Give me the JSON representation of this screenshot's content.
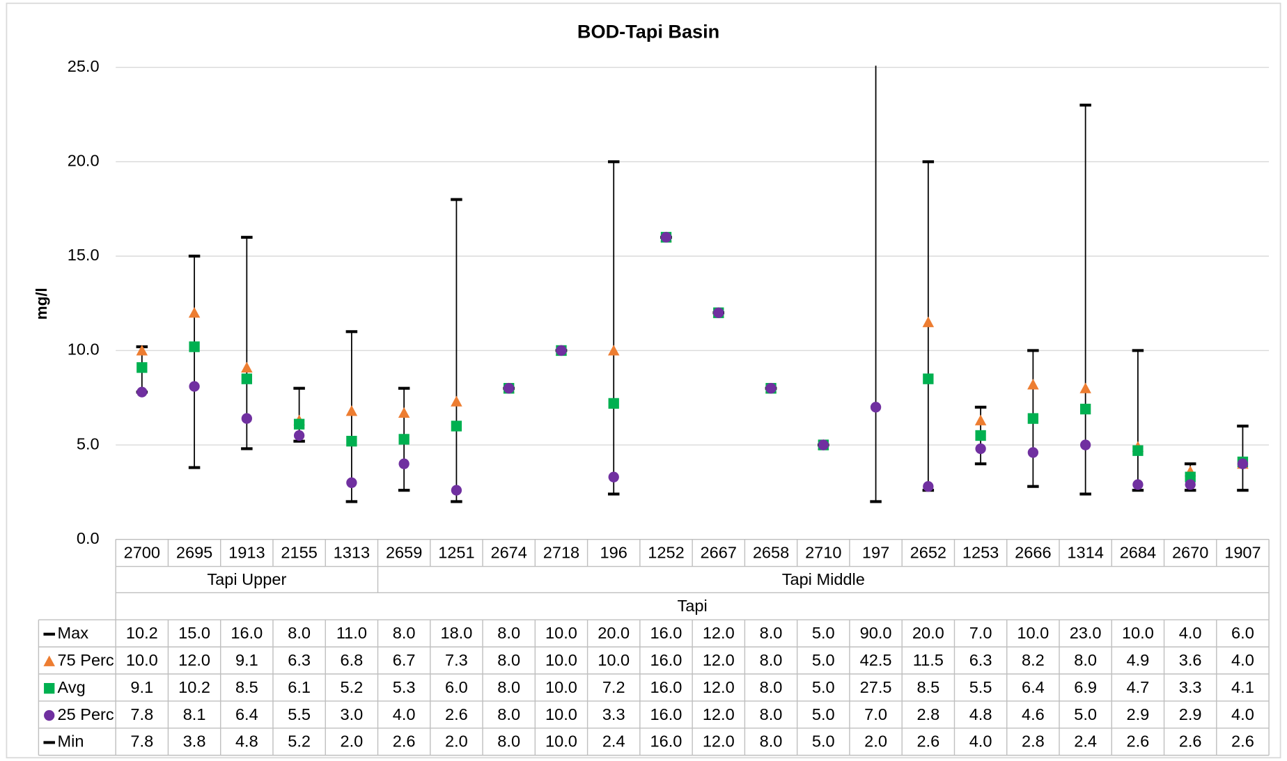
{
  "chart_data": {
    "type": "line",
    "title": "BOD-Tapi Basin",
    "y_label": "mg/l",
    "categories": [
      "2700",
      "2695",
      "1913",
      "2155",
      "1313",
      "2659",
      "1251",
      "2674",
      "2718",
      "196",
      "1252",
      "2667",
      "2658",
      "2710",
      "197",
      "2652",
      "1253",
      "2666",
      "1314",
      "2684",
      "2670",
      "1907"
    ],
    "groups": [
      "Tapi Upper",
      "Tapi Upper",
      "Tapi Upper",
      "Tapi Upper",
      "Tapi Upper",
      "Tapi Middle",
      "Tapi Middle",
      "Tapi Middle",
      "Tapi Middle",
      "Tapi Middle",
      "Tapi Middle",
      "Tapi Middle",
      "Tapi Middle",
      "Tapi Middle",
      "Tapi Middle",
      "Tapi Middle",
      "Tapi Middle",
      "Tapi Middle",
      "Tapi Middle",
      "Tapi Middle",
      "Tapi Middle",
      "Tapi Middle"
    ],
    "supergroup": "Tapi",
    "ylim": [
      0,
      25
    ],
    "yticks": [
      {
        "value": 0,
        "label": "0.0"
      },
      {
        "value": 5,
        "label": "5.0"
      },
      {
        "value": 10,
        "label": "10.0"
      },
      {
        "value": 15,
        "label": "15.0"
      },
      {
        "value": 20,
        "label": "20.0"
      },
      {
        "value": 25,
        "label": "25.0"
      }
    ],
    "grid": true,
    "hilo_lines": true,
    "data_table": true,
    "series": [
      {
        "name": "Max",
        "color": "#000000",
        "marker": "dash",
        "values": [
          10.2,
          15,
          16,
          8,
          11,
          8,
          18,
          8,
          10,
          20,
          16,
          12,
          8,
          5,
          90,
          20,
          7,
          10,
          23,
          10,
          4,
          6
        ],
        "value_labels": [
          "10.2",
          "15.0",
          "16.0",
          "8.0",
          "11.0",
          "8.0",
          "18.0",
          "8.0",
          "10.0",
          "20.0",
          "16.0",
          "12.0",
          "8.0",
          "5.0",
          "90.0",
          "20.0",
          "7.0",
          "10.0",
          "23.0",
          "10.0",
          "4.0",
          "6.0"
        ]
      },
      {
        "name": "75 Perc",
        "color": "#ed7d31",
        "marker": "triangle",
        "values": [
          10,
          12,
          9.1,
          6.3,
          6.8,
          6.7,
          7.3,
          8,
          10,
          10,
          16,
          12,
          8,
          5,
          42.5,
          11.5,
          6.3,
          8.2,
          8,
          4.9,
          3.6,
          4
        ],
        "value_labels": [
          "10.0",
          "12.0",
          "9.1",
          "6.3",
          "6.8",
          "6.7",
          "7.3",
          "8.0",
          "10.0",
          "10.0",
          "16.0",
          "12.0",
          "8.0",
          "5.0",
          "42.5",
          "11.5",
          "6.3",
          "8.2",
          "8.0",
          "4.9",
          "3.6",
          "4.0"
        ]
      },
      {
        "name": "Avg",
        "color": "#00b050",
        "marker": "square",
        "values": [
          9.1,
          10.2,
          8.5,
          6.1,
          5.2,
          5.3,
          6,
          8,
          10,
          7.2,
          16,
          12,
          8,
          5,
          27.5,
          8.5,
          5.5,
          6.4,
          6.9,
          4.7,
          3.3,
          4.1
        ],
        "value_labels": [
          "9.1",
          "10.2",
          "8.5",
          "6.1",
          "5.2",
          "5.3",
          "6.0",
          "8.0",
          "10.0",
          "7.2",
          "16.0",
          "12.0",
          "8.0",
          "5.0",
          "27.5",
          "8.5",
          "5.5",
          "6.4",
          "6.9",
          "4.7",
          "3.3",
          "4.1"
        ]
      },
      {
        "name": "25 Perc",
        "color": "#7030a0",
        "marker": "circle",
        "values": [
          7.8,
          8.1,
          6.4,
          5.5,
          3,
          4,
          2.6,
          8,
          10,
          3.3,
          16,
          12,
          8,
          5,
          7,
          2.8,
          4.8,
          4.6,
          5,
          2.9,
          2.9,
          4
        ],
        "value_labels": [
          "7.8",
          "8.1",
          "6.4",
          "5.5",
          "3.0",
          "4.0",
          "2.6",
          "8.0",
          "10.0",
          "3.3",
          "16.0",
          "12.0",
          "8.0",
          "5.0",
          "7.0",
          "2.8",
          "4.8",
          "4.6",
          "5.0",
          "2.9",
          "2.9",
          "4.0"
        ]
      },
      {
        "name": "Min",
        "color": "#000000",
        "marker": "dash",
        "values": [
          7.8,
          3.8,
          4.8,
          5.2,
          2,
          2.6,
          2,
          8,
          10,
          2.4,
          16,
          12,
          8,
          5,
          2,
          2.6,
          4,
          2.8,
          2.4,
          2.6,
          2.6,
          2.6
        ],
        "value_labels": [
          "7.8",
          "3.8",
          "4.8",
          "5.2",
          "2.0",
          "2.6",
          "2.0",
          "8.0",
          "10.0",
          "2.4",
          "16.0",
          "12.0",
          "8.0",
          "5.0",
          "2.0",
          "2.6",
          "4.0",
          "2.8",
          "2.4",
          "2.6",
          "2.6",
          "2.6"
        ]
      }
    ]
  }
}
